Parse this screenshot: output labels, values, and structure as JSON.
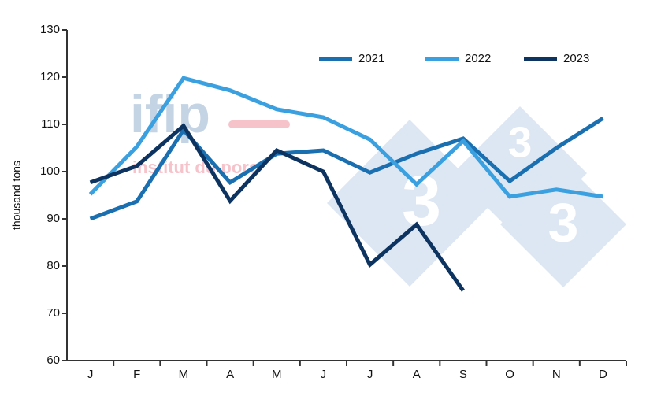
{
  "chart_data": {
    "type": "line",
    "ylabel": "thousand tons",
    "categories": [
      "J",
      "F",
      "M",
      "A",
      "M",
      "J",
      "J",
      "A",
      "S",
      "O",
      "N",
      "D"
    ],
    "series": [
      {
        "name": "2021",
        "color": "#1a6fb0",
        "values": [
          90,
          93.7,
          108.8,
          97.7,
          103.8,
          104.5,
          99.8,
          103.8,
          107,
          98,
          105,
          111.3
        ]
      },
      {
        "name": "2022",
        "color": "#3aa0e0",
        "values": [
          95.2,
          105.3,
          119.8,
          117.2,
          113.2,
          111.5,
          106.8,
          97.3,
          106.5,
          94.7,
          96.2,
          94.7
        ]
      },
      {
        "name": "2023",
        "color": "#0d3461",
        "values": [
          97.7,
          101.2,
          109.7,
          93.8,
          104.5,
          100,
          80.3,
          88.8,
          74.8,
          null,
          null,
          null
        ]
      }
    ],
    "ylim": [
      60,
      130
    ],
    "yticks": [
      60,
      70,
      80,
      90,
      100,
      110,
      120,
      130
    ],
    "legend": "top-right",
    "watermark": [
      "ifip",
      "institut du porc"
    ],
    "logo_digit": "3"
  }
}
